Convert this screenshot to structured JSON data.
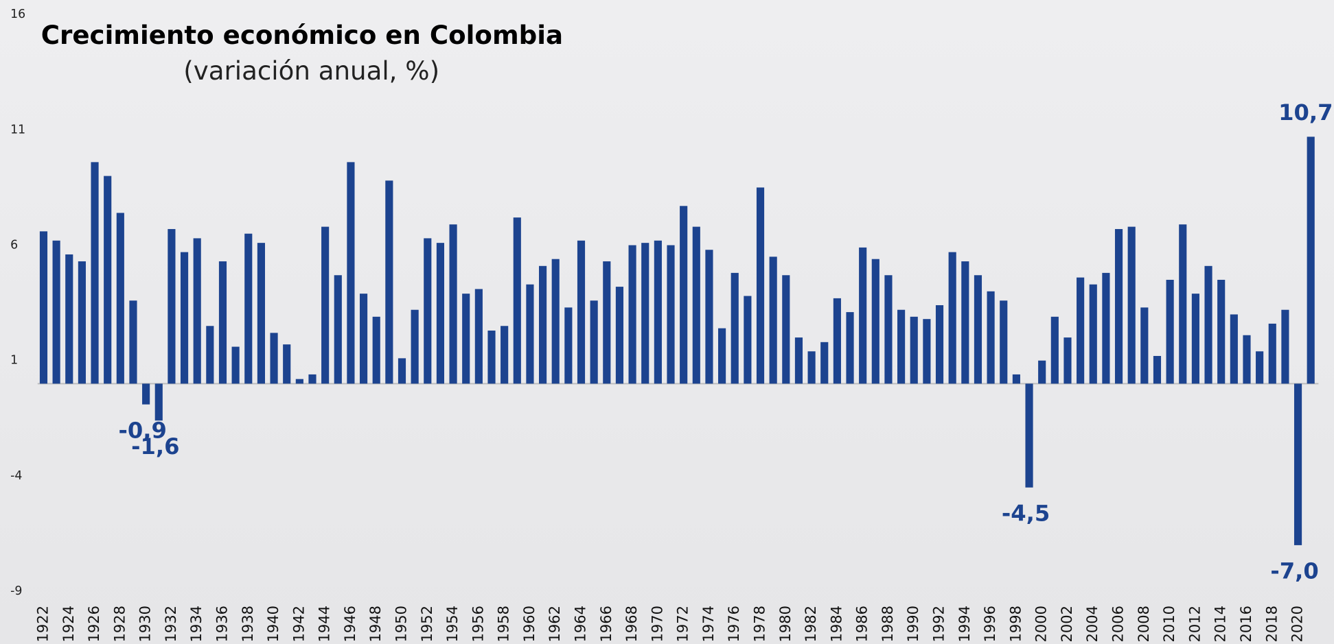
{
  "chart_data": {
    "type": "bar",
    "title": "Crecimiento económico en Colombia",
    "subtitle": "(variación anual, %)",
    "categories": [
      "1922",
      null,
      "1924",
      null,
      "1926",
      null,
      "1928",
      null,
      "1930",
      null,
      "1932",
      null,
      "1934",
      null,
      "1936",
      null,
      "1938",
      null,
      "1940",
      null,
      "1942",
      null,
      "1944",
      null,
      "1946",
      null,
      "1948",
      null,
      "1950",
      null,
      "1952",
      null,
      "1954",
      null,
      "1956",
      null,
      "1958",
      null,
      "1960",
      null,
      "1962",
      null,
      "1964",
      null,
      "1966",
      null,
      "1968",
      null,
      "1970",
      null,
      "1972",
      null,
      "1974",
      null,
      "1976",
      null,
      "1978",
      null,
      "1980",
      null,
      "1982",
      null,
      "1984",
      null,
      "1986",
      null,
      "1988",
      null,
      "1990",
      null,
      "1992",
      null,
      "1994",
      null,
      "1996",
      null,
      "1998",
      null,
      "2000",
      null,
      "2002",
      null,
      "2004",
      null,
      "2006",
      null,
      "2008",
      null,
      "2010",
      null,
      "2012",
      null,
      "2014",
      null,
      "2016",
      null,
      "2018",
      null,
      "2020",
      null
    ],
    "values": [
      6.6,
      6.2,
      5.6,
      5.3,
      9.6,
      9.0,
      7.4,
      3.6,
      -0.9,
      -1.6,
      6.7,
      5.7,
      6.3,
      2.5,
      5.3,
      1.6,
      6.5,
      6.1,
      2.2,
      1.7,
      0.2,
      0.4,
      6.8,
      4.7,
      9.6,
      3.9,
      2.9,
      8.8,
      1.1,
      3.2,
      6.3,
      6.1,
      6.9,
      3.9,
      4.1,
      2.3,
      2.5,
      7.2,
      4.3,
      5.1,
      5.4,
      3.3,
      6.2,
      3.6,
      5.3,
      4.2,
      6.0,
      6.1,
      6.2,
      6.0,
      7.7,
      6.8,
      5.8,
      2.4,
      4.8,
      3.8,
      8.5,
      5.5,
      4.7,
      2.0,
      1.4,
      1.8,
      3.7,
      3.1,
      5.9,
      5.4,
      4.7,
      3.2,
      2.9,
      2.8,
      3.4,
      5.7,
      5.3,
      4.7,
      4.0,
      3.6,
      0.4,
      -4.5,
      1.0,
      2.9,
      2.0,
      4.6,
      4.3,
      4.8,
      6.7,
      6.8,
      3.3,
      1.2,
      4.5,
      6.9,
      3.9,
      5.1,
      4.5,
      3.0,
      2.1,
      1.4,
      2.6,
      3.2,
      -7.0,
      10.7
    ],
    "value_labels": [
      null,
      null,
      null,
      null,
      null,
      null,
      null,
      null,
      "-0,9",
      "-1,6",
      null,
      null,
      null,
      null,
      null,
      null,
      null,
      null,
      null,
      null,
      null,
      null,
      null,
      null,
      null,
      null,
      null,
      null,
      null,
      null,
      null,
      null,
      null,
      null,
      null,
      null,
      null,
      null,
      null,
      null,
      null,
      null,
      null,
      null,
      null,
      null,
      null,
      null,
      null,
      null,
      null,
      null,
      null,
      null,
      null,
      null,
      null,
      null,
      null,
      null,
      null,
      null,
      null,
      null,
      null,
      null,
      null,
      null,
      null,
      null,
      null,
      null,
      null,
      null,
      null,
      null,
      null,
      "-4,5",
      null,
      null,
      null,
      null,
      null,
      null,
      null,
      null,
      null,
      null,
      null,
      null,
      null,
      null,
      null,
      null,
      null,
      null,
      null,
      null,
      "-7,0",
      "10,7"
    ],
    "color": "#1c438f",
    "ylim": [
      -9,
      16
    ],
    "yticks": [
      16,
      11,
      6,
      1,
      -4,
      -9
    ],
    "grid": false
  }
}
